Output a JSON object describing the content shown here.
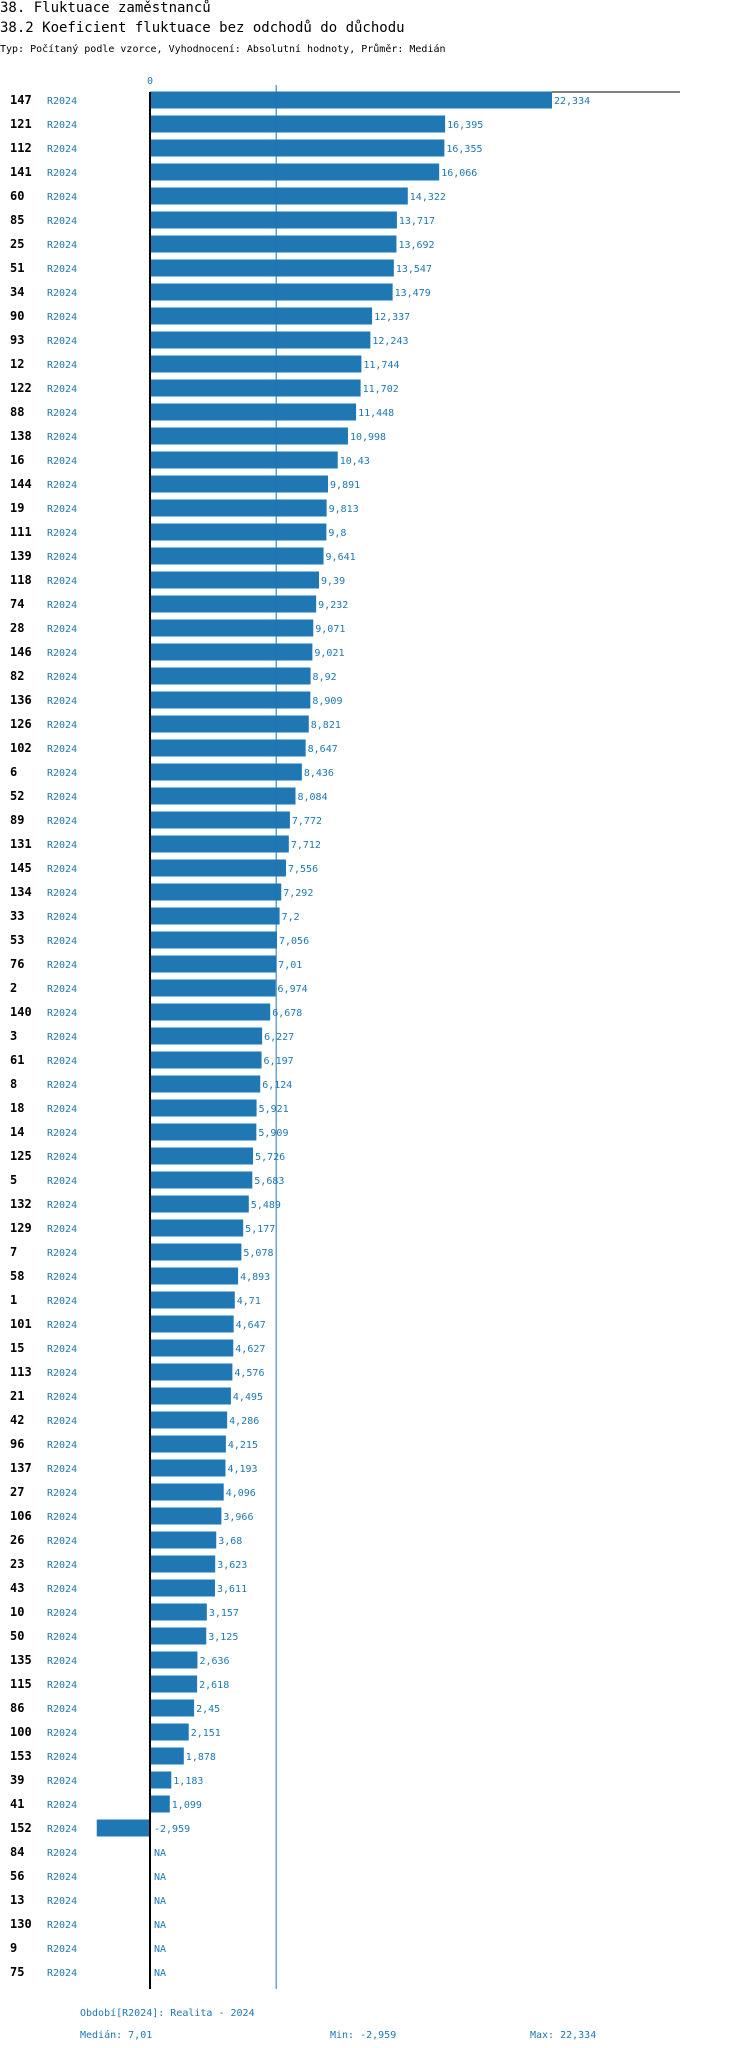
{
  "header": {
    "title": "38. Fluktuace zaměstnanců",
    "subtitle": "38.2 Koeficient fluktuace bez odchodů do důchodu",
    "type_line": "Typ: Počítaný podle vzorce, Vyhodnocení: Absolutní hodnoty, Průměr: Medián"
  },
  "colors": {
    "bar": "#1f77b4",
    "axis": "#000000",
    "median_line": "#1f77b4"
  },
  "chart_data": {
    "type": "bar",
    "orientation": "horizontal",
    "series_name": "R2024",
    "zero_label": "0",
    "median": 7.01,
    "rows": [
      {
        "id": "147",
        "series": "R2024",
        "value": 22.334,
        "label": "22,334"
      },
      {
        "id": "121",
        "series": "R2024",
        "value": 16.395,
        "label": "16,395"
      },
      {
        "id": "112",
        "series": "R2024",
        "value": 16.355,
        "label": "16,355"
      },
      {
        "id": "141",
        "series": "R2024",
        "value": 16.066,
        "label": "16,066"
      },
      {
        "id": "60",
        "series": "R2024",
        "value": 14.322,
        "label": "14,322"
      },
      {
        "id": "85",
        "series": "R2024",
        "value": 13.717,
        "label": "13,717"
      },
      {
        "id": "25",
        "series": "R2024",
        "value": 13.692,
        "label": "13,692"
      },
      {
        "id": "51",
        "series": "R2024",
        "value": 13.547,
        "label": "13,547"
      },
      {
        "id": "34",
        "series": "R2024",
        "value": 13.479,
        "label": "13,479"
      },
      {
        "id": "90",
        "series": "R2024",
        "value": 12.337,
        "label": "12,337"
      },
      {
        "id": "93",
        "series": "R2024",
        "value": 12.243,
        "label": "12,243"
      },
      {
        "id": "12",
        "series": "R2024",
        "value": 11.744,
        "label": "11,744"
      },
      {
        "id": "122",
        "series": "R2024",
        "value": 11.702,
        "label": "11,702"
      },
      {
        "id": "88",
        "series": "R2024",
        "value": 11.448,
        "label": "11,448"
      },
      {
        "id": "138",
        "series": "R2024",
        "value": 10.998,
        "label": "10,998"
      },
      {
        "id": "16",
        "series": "R2024",
        "value": 10.43,
        "label": "10,43"
      },
      {
        "id": "144",
        "series": "R2024",
        "value": 9.891,
        "label": "9,891"
      },
      {
        "id": "19",
        "series": "R2024",
        "value": 9.813,
        "label": "9,813"
      },
      {
        "id": "111",
        "series": "R2024",
        "value": 9.8,
        "label": "9,8"
      },
      {
        "id": "139",
        "series": "R2024",
        "value": 9.641,
        "label": "9,641"
      },
      {
        "id": "118",
        "series": "R2024",
        "value": 9.39,
        "label": "9,39"
      },
      {
        "id": "74",
        "series": "R2024",
        "value": 9.232,
        "label": "9,232"
      },
      {
        "id": "28",
        "series": "R2024",
        "value": 9.071,
        "label": "9,071"
      },
      {
        "id": "146",
        "series": "R2024",
        "value": 9.021,
        "label": "9,021"
      },
      {
        "id": "82",
        "series": "R2024",
        "value": 8.92,
        "label": "8,92"
      },
      {
        "id": "136",
        "series": "R2024",
        "value": 8.909,
        "label": "8,909"
      },
      {
        "id": "126",
        "series": "R2024",
        "value": 8.821,
        "label": "8,821"
      },
      {
        "id": "102",
        "series": "R2024",
        "value": 8.647,
        "label": "8,647"
      },
      {
        "id": "6",
        "series": "R2024",
        "value": 8.436,
        "label": "8,436"
      },
      {
        "id": "52",
        "series": "R2024",
        "value": 8.084,
        "label": "8,084"
      },
      {
        "id": "89",
        "series": "R2024",
        "value": 7.772,
        "label": "7,772"
      },
      {
        "id": "131",
        "series": "R2024",
        "value": 7.712,
        "label": "7,712"
      },
      {
        "id": "145",
        "series": "R2024",
        "value": 7.556,
        "label": "7,556"
      },
      {
        "id": "134",
        "series": "R2024",
        "value": 7.292,
        "label": "7,292"
      },
      {
        "id": "33",
        "series": "R2024",
        "value": 7.2,
        "label": "7,2"
      },
      {
        "id": "53",
        "series": "R2024",
        "value": 7.056,
        "label": "7,056"
      },
      {
        "id": "76",
        "series": "R2024",
        "value": 7.01,
        "label": "7,01"
      },
      {
        "id": "2",
        "series": "R2024",
        "value": 6.974,
        "label": "6,974"
      },
      {
        "id": "140",
        "series": "R2024",
        "value": 6.678,
        "label": "6,678"
      },
      {
        "id": "3",
        "series": "R2024",
        "value": 6.227,
        "label": "6,227"
      },
      {
        "id": "61",
        "series": "R2024",
        "value": 6.197,
        "label": "6,197"
      },
      {
        "id": "8",
        "series": "R2024",
        "value": 6.124,
        "label": "6,124"
      },
      {
        "id": "18",
        "series": "R2024",
        "value": 5.921,
        "label": "5,921"
      },
      {
        "id": "14",
        "series": "R2024",
        "value": 5.909,
        "label": "5,909"
      },
      {
        "id": "125",
        "series": "R2024",
        "value": 5.726,
        "label": "5,726"
      },
      {
        "id": "5",
        "series": "R2024",
        "value": 5.683,
        "label": "5,683"
      },
      {
        "id": "132",
        "series": "R2024",
        "value": 5.489,
        "label": "5,489"
      },
      {
        "id": "129",
        "series": "R2024",
        "value": 5.177,
        "label": "5,177"
      },
      {
        "id": "7",
        "series": "R2024",
        "value": 5.078,
        "label": "5,078"
      },
      {
        "id": "58",
        "series": "R2024",
        "value": 4.893,
        "label": "4,893"
      },
      {
        "id": "1",
        "series": "R2024",
        "value": 4.71,
        "label": "4,71"
      },
      {
        "id": "101",
        "series": "R2024",
        "value": 4.647,
        "label": "4,647"
      },
      {
        "id": "15",
        "series": "R2024",
        "value": 4.627,
        "label": "4,627"
      },
      {
        "id": "113",
        "series": "R2024",
        "value": 4.576,
        "label": "4,576"
      },
      {
        "id": "21",
        "series": "R2024",
        "value": 4.495,
        "label": "4,495"
      },
      {
        "id": "42",
        "series": "R2024",
        "value": 4.286,
        "label": "4,286"
      },
      {
        "id": "96",
        "series": "R2024",
        "value": 4.215,
        "label": "4,215"
      },
      {
        "id": "137",
        "series": "R2024",
        "value": 4.193,
        "label": "4,193"
      },
      {
        "id": "27",
        "series": "R2024",
        "value": 4.096,
        "label": "4,096"
      },
      {
        "id": "106",
        "series": "R2024",
        "value": 3.966,
        "label": "3,966"
      },
      {
        "id": "26",
        "series": "R2024",
        "value": 3.68,
        "label": "3,68"
      },
      {
        "id": "23",
        "series": "R2024",
        "value": 3.623,
        "label": "3,623"
      },
      {
        "id": "43",
        "series": "R2024",
        "value": 3.611,
        "label": "3,611"
      },
      {
        "id": "10",
        "series": "R2024",
        "value": 3.157,
        "label": "3,157"
      },
      {
        "id": "50",
        "series": "R2024",
        "value": 3.125,
        "label": "3,125"
      },
      {
        "id": "135",
        "series": "R2024",
        "value": 2.636,
        "label": "2,636"
      },
      {
        "id": "115",
        "series": "R2024",
        "value": 2.618,
        "label": "2,618"
      },
      {
        "id": "86",
        "series": "R2024",
        "value": 2.45,
        "label": "2,45"
      },
      {
        "id": "100",
        "series": "R2024",
        "value": 2.151,
        "label": "2,151"
      },
      {
        "id": "153",
        "series": "R2024",
        "value": 1.878,
        "label": "1,878"
      },
      {
        "id": "39",
        "series": "R2024",
        "value": 1.183,
        "label": "1,183"
      },
      {
        "id": "41",
        "series": "R2024",
        "value": 1.099,
        "label": "1,099"
      },
      {
        "id": "152",
        "series": "R2024",
        "value": -2.959,
        "label": "-2,959"
      },
      {
        "id": "84",
        "series": "R2024",
        "value": null,
        "label": "NA"
      },
      {
        "id": "56",
        "series": "R2024",
        "value": null,
        "label": "NA"
      },
      {
        "id": "13",
        "series": "R2024",
        "value": null,
        "label": "NA"
      },
      {
        "id": "130",
        "series": "R2024",
        "value": null,
        "label": "NA"
      },
      {
        "id": "9",
        "series": "R2024",
        "value": null,
        "label": "NA"
      },
      {
        "id": "75",
        "series": "R2024",
        "value": null,
        "label": "NA"
      }
    ]
  },
  "footer": {
    "period": "Období[R2024]: Realita - 2024",
    "median": "Medián: 7,01",
    "min": "Min: -2,959",
    "max": "Max: 22,334"
  }
}
